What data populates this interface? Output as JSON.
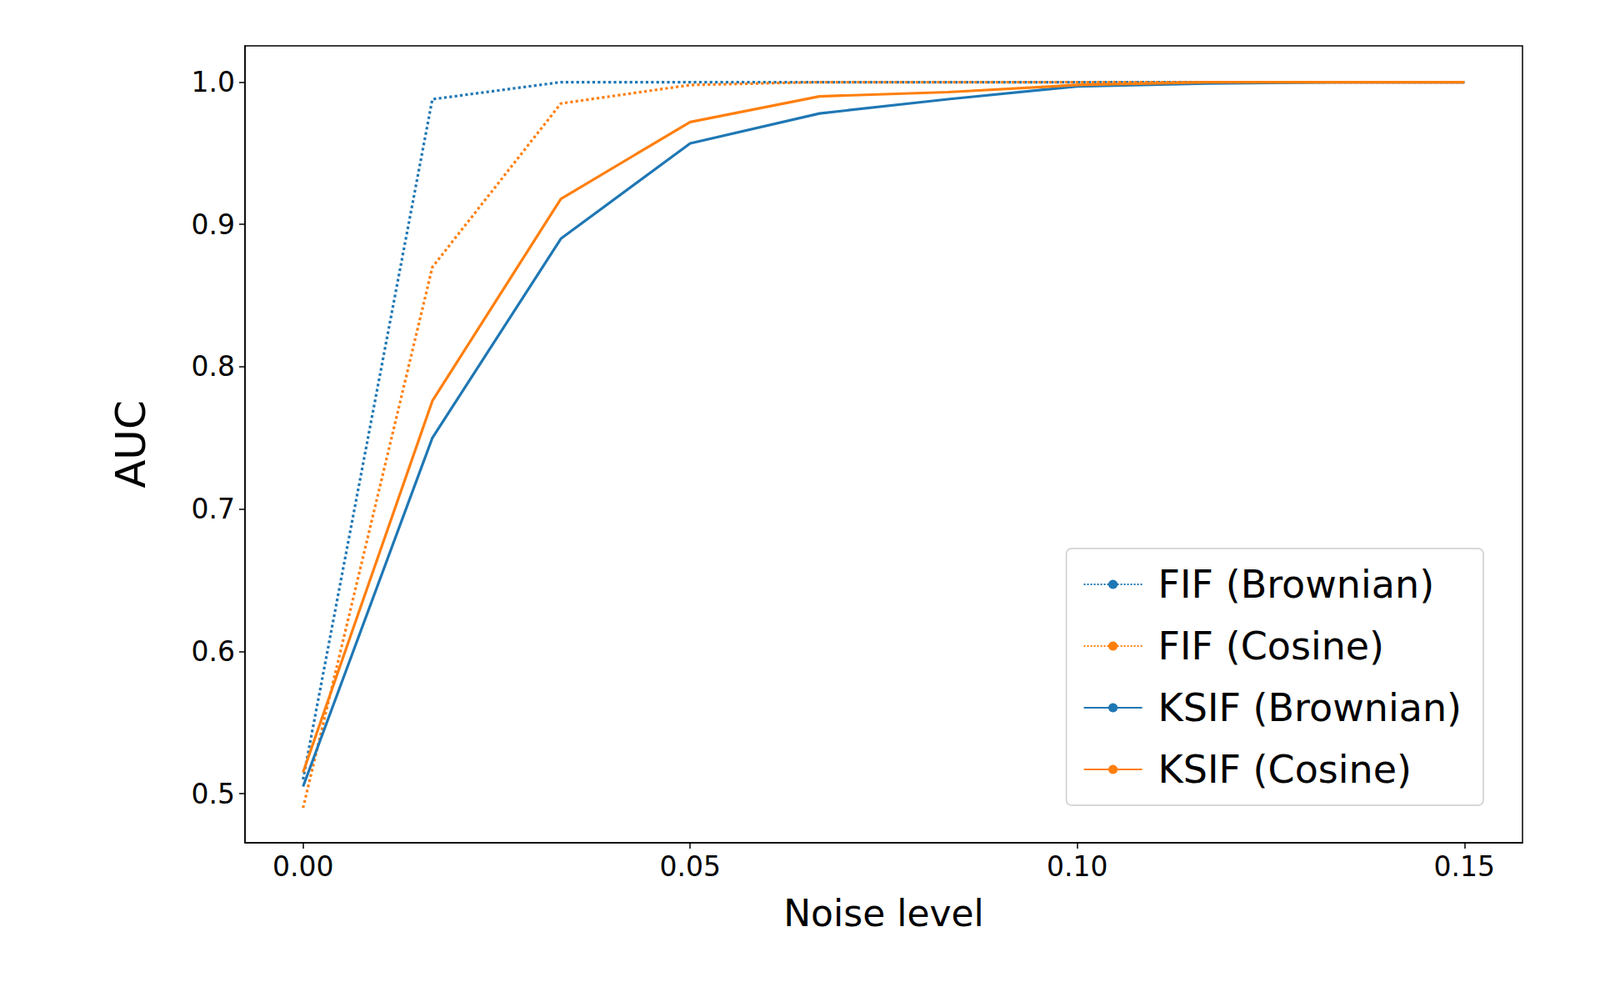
{
  "chart_data": {
    "type": "line",
    "x_label": "Noise level",
    "y_label": "AUC",
    "x": [
      0,
      0.0167,
      0.0333,
      0.05,
      0.0667,
      0.0833,
      0.1,
      0.1167,
      0.1333,
      0.15
    ],
    "series": [
      {
        "name": "FIF (Brownian)",
        "color": "#1f77b4",
        "line_style": "dotted",
        "values": [
          0.51,
          0.988,
          1.0,
          1.0,
          1.0,
          1.0,
          1.0,
          1.0,
          1.0,
          1.0
        ]
      },
      {
        "name": "FIF (Cosine)",
        "color": "#ff7f0e",
        "line_style": "dotted",
        "values": [
          0.49,
          0.87,
          0.985,
          0.998,
          1.0,
          1.0,
          1.0,
          1.0,
          1.0,
          1.0
        ]
      },
      {
        "name": "KSIF (Brownian)",
        "color": "#1f77b4",
        "line_style": "solid",
        "values": [
          0.505,
          0.75,
          0.89,
          0.957,
          0.978,
          0.988,
          0.997,
          0.999,
          1.0,
          1.0
        ]
      },
      {
        "name": "KSIF (Cosine)",
        "color": "#ff7f0e",
        "line_style": "solid",
        "values": [
          0.515,
          0.776,
          0.918,
          0.972,
          0.99,
          0.993,
          0.998,
          1.0,
          1.0,
          1.0
        ]
      }
    ],
    "xlim": [
      -0.0075,
      0.1575
    ],
    "ylim": [
      0.4655,
      1.0255
    ],
    "xticks": [
      {
        "value": 0,
        "label": "0.00"
      },
      {
        "value": 0.05,
        "label": "0.05"
      },
      {
        "value": 0.1,
        "label": "0.10"
      },
      {
        "value": 0.15,
        "label": "0.15"
      }
    ],
    "yticks": [
      0.5,
      0.6,
      0.7,
      0.8,
      0.9,
      {
        "value": 1.0,
        "label": "1.0"
      }
    ],
    "legend": "lower right",
    "grid": false
  }
}
